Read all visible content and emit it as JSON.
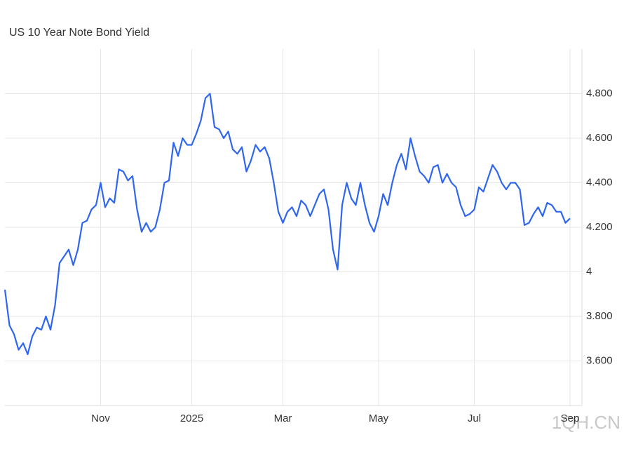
{
  "chart_data": {
    "type": "line",
    "title": "US 10 Year Note Bond Yield",
    "watermark": "1QH.CN",
    "categories": [
      null,
      null,
      null,
      null,
      null,
      null,
      null,
      null,
      null,
      null,
      null,
      null,
      null,
      null,
      null,
      null,
      null,
      null,
      null,
      null,
      null,
      "Nov",
      null,
      null,
      null,
      null,
      null,
      null,
      null,
      null,
      null,
      null,
      null,
      null,
      null,
      null,
      null,
      null,
      null,
      null,
      null,
      "2025",
      null,
      null,
      null,
      null,
      null,
      null,
      null,
      null,
      null,
      null,
      null,
      null,
      null,
      null,
      null,
      null,
      null,
      null,
      null,
      "Mar",
      null,
      null,
      null,
      null,
      null,
      null,
      null,
      null,
      null,
      null,
      null,
      null,
      null,
      null,
      null,
      null,
      null,
      null,
      null,
      null,
      "May",
      null,
      null,
      null,
      null,
      null,
      null,
      null,
      null,
      null,
      null,
      null,
      null,
      null,
      null,
      null,
      null,
      null,
      null,
      null,
      null,
      "Jul",
      null,
      null,
      null,
      null,
      null,
      null,
      null,
      null,
      null,
      null,
      null,
      null,
      null,
      null,
      null,
      null,
      null,
      null,
      null,
      null,
      "Sep"
    ],
    "values": [
      3.92,
      3.76,
      3.72,
      3.65,
      3.68,
      3.63,
      3.71,
      3.75,
      3.74,
      3.8,
      3.74,
      3.85,
      4.04,
      4.07,
      4.1,
      4.03,
      4.1,
      4.22,
      4.23,
      4.28,
      4.3,
      4.4,
      4.29,
      4.33,
      4.31,
      4.46,
      4.45,
      4.41,
      4.43,
      4.28,
      4.18,
      4.22,
      4.18,
      4.2,
      4.28,
      4.4,
      4.41,
      4.58,
      4.52,
      4.6,
      4.57,
      4.57,
      4.62,
      4.68,
      4.78,
      4.8,
      4.65,
      4.64,
      4.6,
      4.63,
      4.55,
      4.53,
      4.56,
      4.45,
      4.5,
      4.57,
      4.54,
      4.56,
      4.51,
      4.4,
      4.27,
      4.22,
      4.27,
      4.29,
      4.25,
      4.32,
      4.3,
      4.25,
      4.3,
      4.35,
      4.37,
      4.28,
      4.1,
      4.01,
      4.3,
      4.4,
      4.33,
      4.3,
      4.4,
      4.3,
      4.22,
      4.18,
      4.25,
      4.35,
      4.3,
      4.4,
      4.48,
      4.53,
      4.46,
      4.6,
      4.52,
      4.45,
      4.43,
      4.4,
      4.47,
      4.48,
      4.4,
      4.44,
      4.4,
      4.38,
      4.3,
      4.25,
      4.26,
      4.28,
      4.38,
      4.36,
      4.42,
      4.48,
      4.45,
      4.4,
      4.37,
      4.4,
      4.4,
      4.37,
      4.21,
      4.22,
      4.26,
      4.29,
      4.25,
      4.31,
      4.3,
      4.27,
      4.27,
      4.22,
      4.24
    ],
    "color": "#2f66f0",
    "ylim": [
      3.4,
      5.0
    ],
    "yticks": [
      {
        "value": 3.6,
        "label": "3.600"
      },
      {
        "value": 3.8,
        "label": "3.800"
      },
      4,
      {
        "value": 4.2,
        "label": "4.200"
      },
      {
        "value": 4.4,
        "label": "4.400"
      },
      {
        "value": 4.6,
        "label": "4.600"
      },
      {
        "value": 4.8,
        "label": "4.800"
      }
    ],
    "grid": true
  }
}
